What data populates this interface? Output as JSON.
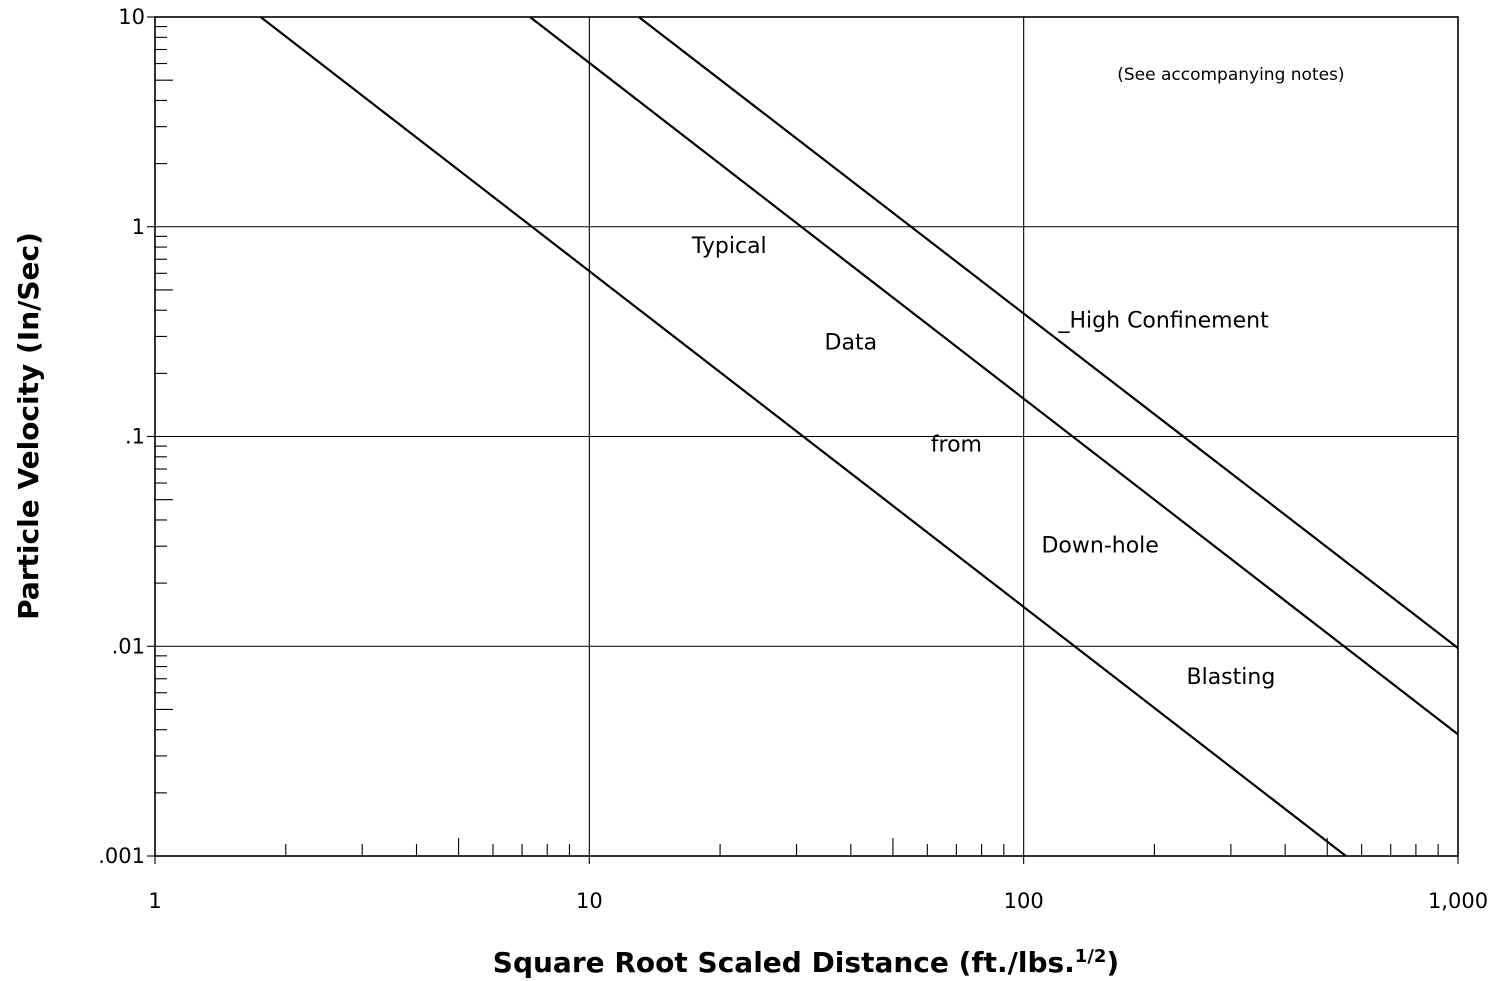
{
  "chart_data": {
    "type": "line",
    "xscale": "log",
    "yscale": "log",
    "xlim": [
      1,
      1000
    ],
    "ylim": [
      0.001,
      10
    ],
    "xticks": [
      {
        "value": 1,
        "label": "1"
      },
      {
        "value": 10,
        "label": "10"
      },
      {
        "value": 100,
        "label": "100"
      },
      {
        "value": 1000,
        "label": "1,000"
      }
    ],
    "yticks": [
      {
        "value": 10,
        "label": "10"
      },
      {
        "value": 1,
        "label": "1"
      },
      {
        "value": 0.1,
        "label": ".1"
      },
      {
        "value": 0.01,
        "label": ".01"
      },
      {
        "value": 0.001,
        "label": ".001"
      }
    ],
    "xlabel_main": "Square Root Scaled Distance  (ft./lbs.",
    "xlabel_sup": "1/2",
    "xlabel_end": ")",
    "ylabel": "Particle Velocity  (In/Sec)",
    "grid": "major",
    "series": [
      {
        "x": [
          1.75,
          552
        ],
        "y": [
          10,
          0.001
        ]
      },
      {
        "x": [
          7.3,
          1000
        ],
        "y": [
          10,
          0.0038
        ]
      },
      {
        "x": [
          13,
          1000
        ],
        "y": [
          10,
          0.0098
        ]
      }
    ],
    "annotations": [
      {
        "text": "(See accompanying notes)",
        "x": 300,
        "y": 5.0
      },
      {
        "text": "Typical",
        "x": 21,
        "y": 0.75
      },
      {
        "text": "Data",
        "x": 40,
        "y": 0.26
      },
      {
        "text": "from",
        "x": 70,
        "y": 0.085
      },
      {
        "text": "Down-hole",
        "x": 150,
        "y": 0.028
      },
      {
        "text": "Blasting",
        "x": 300,
        "y": 0.0066
      },
      {
        "text": "_High Confinement",
        "x": 210,
        "y": 0.33
      }
    ]
  }
}
